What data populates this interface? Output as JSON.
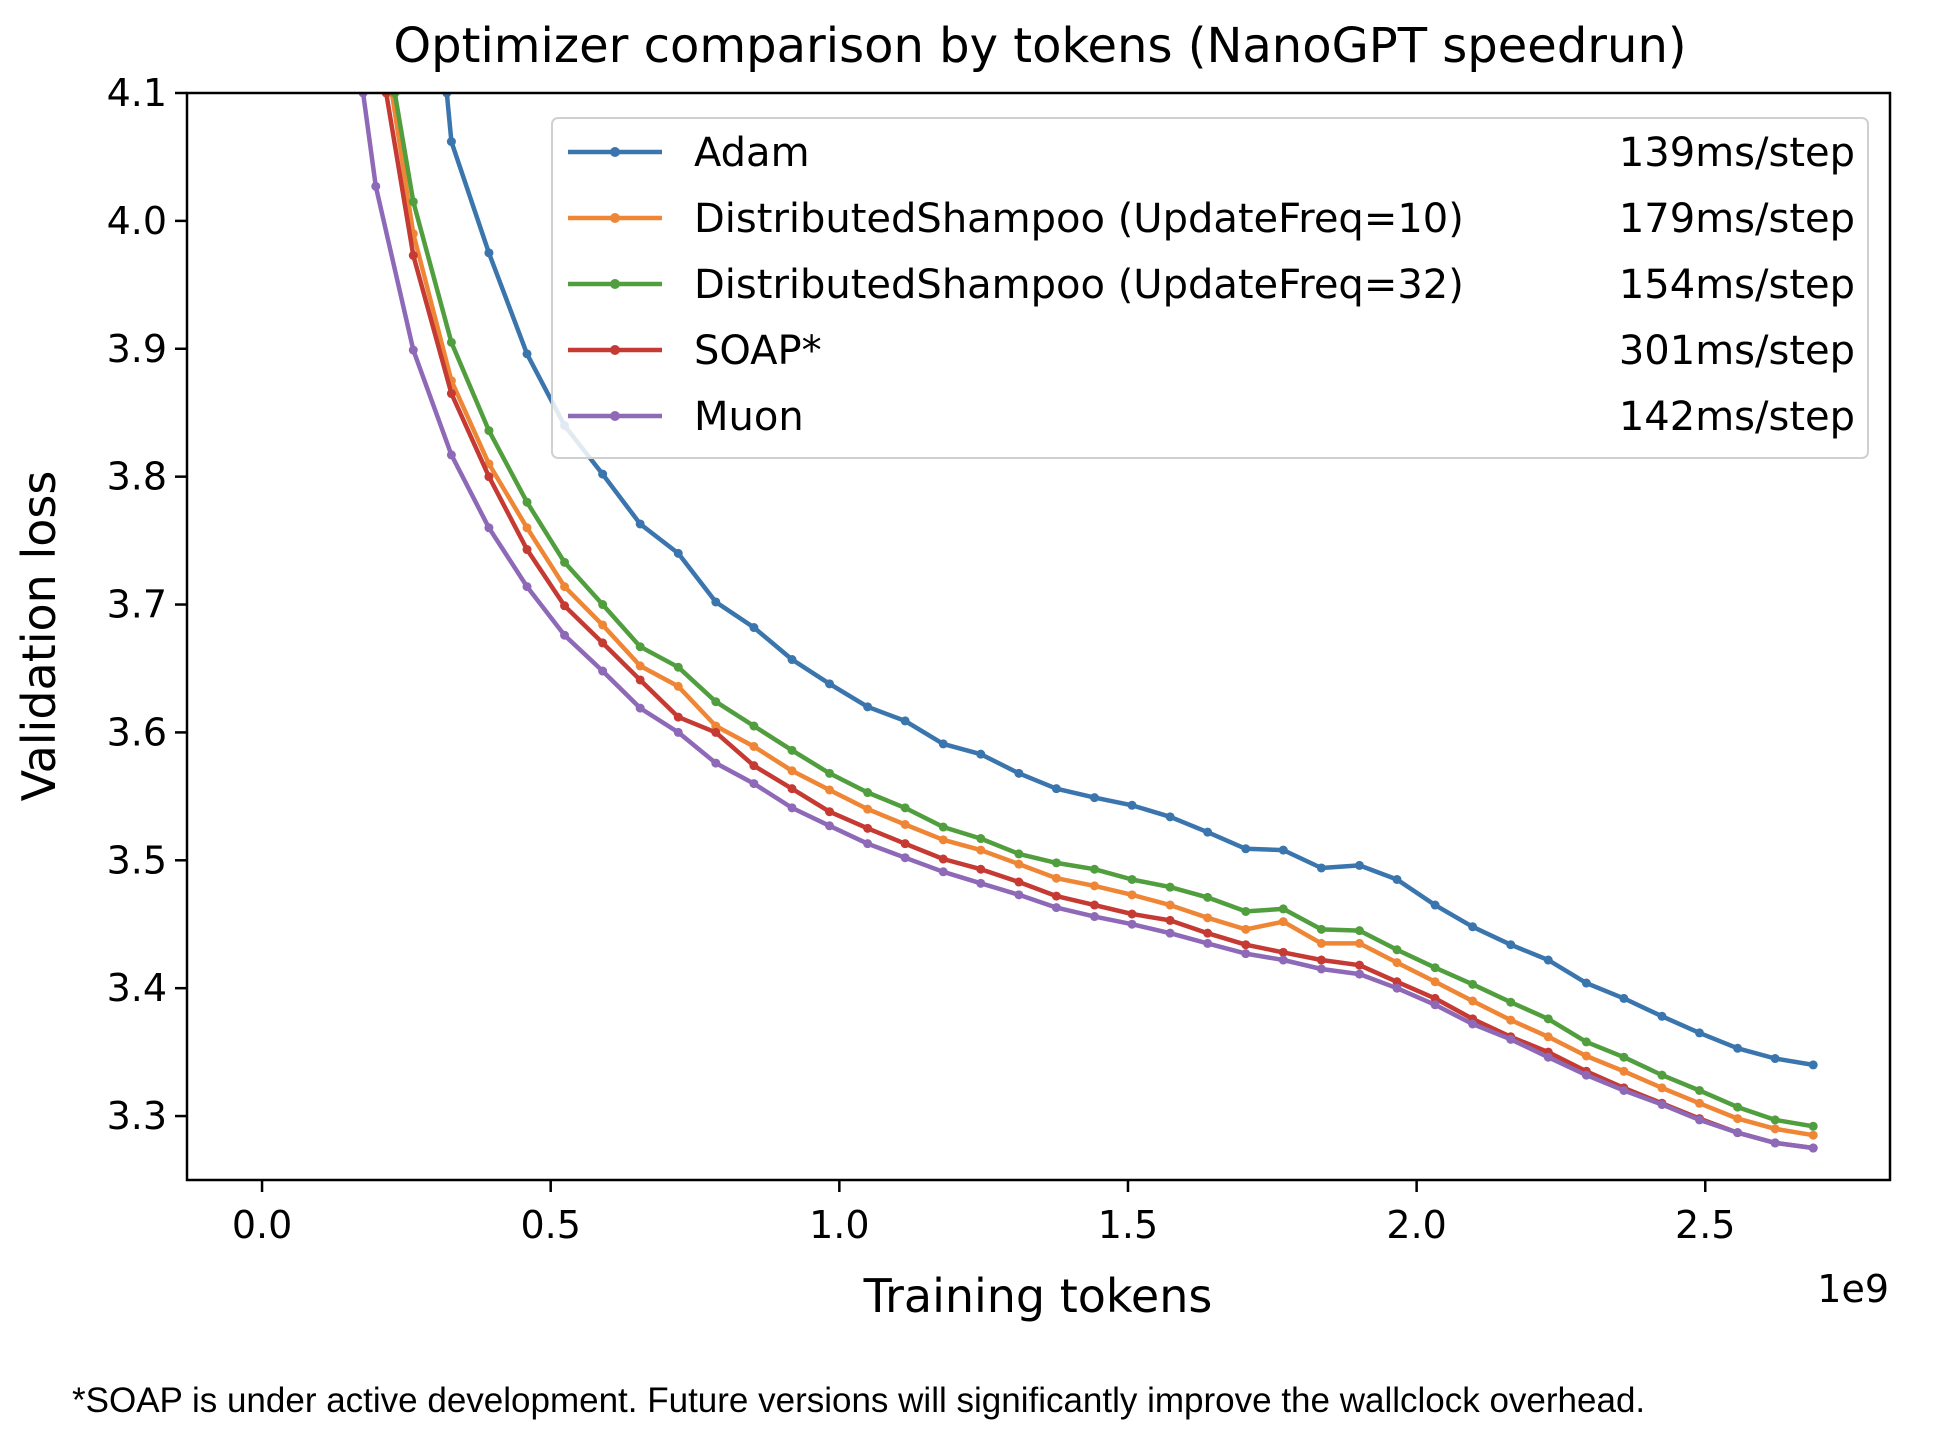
{
  "chart_data": {
    "type": "line",
    "title": "Optimizer comparison by tokens (NanoGPT speedrun)",
    "xlabel": "Training tokens",
    "ylabel": "Validation loss",
    "x_offset_label": "1e9",
    "xlim": [
      -0.13,
      2.82
    ],
    "ylim": [
      3.25,
      4.1
    ],
    "xticks": [
      0.0,
      0.5,
      1.0,
      1.5,
      2.0,
      2.5
    ],
    "xtick_labels": [
      "0.0",
      "0.5",
      "1.0",
      "1.5",
      "2.0",
      "2.5"
    ],
    "yticks": [
      3.3,
      3.4,
      3.5,
      3.6,
      3.7,
      3.8,
      3.9,
      4.0,
      4.1
    ],
    "ytick_labels": [
      "3.3",
      "3.4",
      "3.5",
      "3.6",
      "3.7",
      "3.8",
      "3.9",
      "4.0",
      "4.1"
    ],
    "legend_position": "top-right",
    "x": [
      0.197,
      0.262,
      0.328,
      0.393,
      0.459,
      0.524,
      0.59,
      0.655,
      0.721,
      0.786,
      0.852,
      0.918,
      0.983,
      1.049,
      1.114,
      1.18,
      1.245,
      1.311,
      1.376,
      1.442,
      1.507,
      1.573,
      1.638,
      1.704,
      1.769,
      1.835,
      1.901,
      1.966,
      2.032,
      2.097,
      2.163,
      2.228,
      2.294,
      2.359,
      2.425,
      2.49,
      2.556,
      2.621,
      2.687
    ],
    "series": [
      {
        "name": "Adam",
        "speed": "139ms/step",
        "color": "#3a75ae",
        "x": [
          0.32,
          0.328,
          0.393,
          0.459,
          0.524,
          0.59,
          0.655,
          0.721,
          0.786,
          0.852,
          0.918,
          0.983,
          1.049,
          1.114,
          1.18,
          1.245,
          1.311,
          1.376,
          1.442,
          1.507,
          1.573,
          1.638,
          1.704,
          1.769,
          1.835,
          1.901,
          1.966,
          2.032,
          2.097,
          2.163,
          2.228,
          2.294,
          2.359,
          2.425,
          2.49,
          2.556,
          2.621,
          2.687
        ],
        "values": [
          4.1,
          4.062,
          3.975,
          3.896,
          3.84,
          3.802,
          3.763,
          3.74,
          3.702,
          3.682,
          3.657,
          3.638,
          3.62,
          3.609,
          3.591,
          3.583,
          3.568,
          3.556,
          3.549,
          3.543,
          3.534,
          3.522,
          3.509,
          3.508,
          3.494,
          3.496,
          3.485,
          3.465,
          3.448,
          3.434,
          3.422,
          3.404,
          3.392,
          3.378,
          3.365,
          3.353,
          3.345,
          3.34
        ]
      },
      {
        "name": "DistributedShampoo (UpdateFreq=10)",
        "speed": "179ms/step",
        "color": "#ef8636",
        "x": [
          0.225,
          0.262,
          0.328,
          0.393,
          0.459,
          0.524,
          0.59,
          0.655,
          0.721,
          0.786,
          0.852,
          0.918,
          0.983,
          1.049,
          1.114,
          1.18,
          1.245,
          1.311,
          1.376,
          1.442,
          1.507,
          1.573,
          1.638,
          1.704,
          1.769,
          1.835,
          1.901,
          1.966,
          2.032,
          2.097,
          2.163,
          2.228,
          2.294,
          2.359,
          2.425,
          2.49,
          2.556,
          2.621,
          2.687
        ],
        "values": [
          4.1,
          3.99,
          3.875,
          3.81,
          3.76,
          3.714,
          3.684,
          3.652,
          3.636,
          3.605,
          3.589,
          3.57,
          3.555,
          3.54,
          3.528,
          3.516,
          3.508,
          3.497,
          3.486,
          3.48,
          3.473,
          3.465,
          3.455,
          3.446,
          3.452,
          3.435,
          3.435,
          3.42,
          3.405,
          3.39,
          3.375,
          3.362,
          3.347,
          3.335,
          3.322,
          3.31,
          3.298,
          3.29,
          3.285
        ]
      },
      {
        "name": "DistributedShampoo (UpdateFreq=32)",
        "speed": "154ms/step",
        "color": "#519e3e",
        "x": [
          0.23,
          0.262,
          0.328,
          0.393,
          0.459,
          0.524,
          0.59,
          0.655,
          0.721,
          0.786,
          0.852,
          0.918,
          0.983,
          1.049,
          1.114,
          1.18,
          1.245,
          1.311,
          1.376,
          1.442,
          1.507,
          1.573,
          1.638,
          1.704,
          1.769,
          1.835,
          1.901,
          1.966,
          2.032,
          2.097,
          2.163,
          2.228,
          2.294,
          2.359,
          2.425,
          2.49,
          2.556,
          2.621,
          2.687
        ],
        "values": [
          4.1,
          4.015,
          3.905,
          3.836,
          3.78,
          3.733,
          3.7,
          3.667,
          3.651,
          3.624,
          3.605,
          3.586,
          3.568,
          3.553,
          3.541,
          3.526,
          3.517,
          3.505,
          3.498,
          3.493,
          3.485,
          3.479,
          3.471,
          3.46,
          3.462,
          3.446,
          3.445,
          3.43,
          3.416,
          3.403,
          3.389,
          3.376,
          3.358,
          3.346,
          3.332,
          3.32,
          3.307,
          3.297,
          3.292
        ]
      },
      {
        "name": "SOAP*",
        "speed": "301ms/step",
        "color": "#c53a32",
        "x": [
          0.215,
          0.262,
          0.328,
          0.393,
          0.459,
          0.524,
          0.59,
          0.655,
          0.721,
          0.786,
          0.852,
          0.918,
          0.983,
          1.049,
          1.114,
          1.18,
          1.245,
          1.311,
          1.376,
          1.442,
          1.507,
          1.573,
          1.638,
          1.704,
          1.769,
          1.835,
          1.901,
          1.966,
          2.032,
          2.097,
          2.163,
          2.228,
          2.294,
          2.359,
          2.425,
          2.49,
          2.556,
          2.621,
          2.687
        ],
        "values": [
          4.1,
          3.973,
          3.865,
          3.8,
          3.743,
          3.699,
          3.67,
          3.641,
          3.612,
          3.6,
          3.574,
          3.556,
          3.538,
          3.525,
          3.513,
          3.501,
          3.493,
          3.483,
          3.472,
          3.465,
          3.458,
          3.453,
          3.443,
          3.434,
          3.428,
          3.422,
          3.418,
          3.405,
          3.392,
          3.376,
          3.362,
          3.35,
          3.335,
          3.322,
          3.31,
          3.298,
          3.287,
          3.279,
          3.275
        ]
      },
      {
        "name": "Muon",
        "speed": "142ms/step",
        "color": "#8d69b8",
        "x": [
          0.175,
          0.197,
          0.262,
          0.328,
          0.393,
          0.459,
          0.524,
          0.59,
          0.655,
          0.721,
          0.786,
          0.852,
          0.918,
          0.983,
          1.049,
          1.114,
          1.18,
          1.245,
          1.311,
          1.376,
          1.442,
          1.507,
          1.573,
          1.638,
          1.704,
          1.769,
          1.835,
          1.901,
          1.966,
          2.032,
          2.097,
          2.163,
          2.228,
          2.294,
          2.359,
          2.425,
          2.49,
          2.556,
          2.621,
          2.687
        ],
        "values": [
          4.1,
          4.027,
          3.899,
          3.817,
          3.76,
          3.714,
          3.676,
          3.648,
          3.619,
          3.6,
          3.576,
          3.56,
          3.541,
          3.527,
          3.513,
          3.502,
          3.491,
          3.482,
          3.473,
          3.463,
          3.456,
          3.45,
          3.443,
          3.435,
          3.427,
          3.422,
          3.415,
          3.411,
          3.4,
          3.387,
          3.372,
          3.36,
          3.346,
          3.332,
          3.32,
          3.309,
          3.297,
          3.287,
          3.279,
          3.275
        ]
      }
    ]
  },
  "footnote": "*SOAP is under active development. Future versions will significantly improve the wallclock overhead."
}
